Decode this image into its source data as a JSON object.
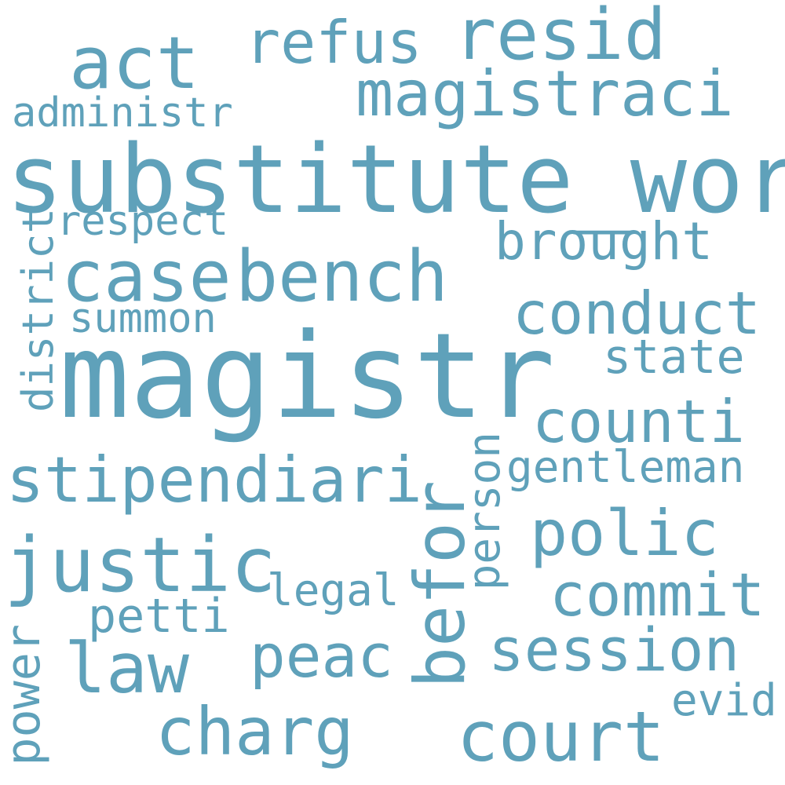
{
  "color": "#5fa1ba",
  "words": {
    "magistr": "magistr",
    "substitute_word": "substitute_word",
    "case": "case",
    "bench": "bench",
    "act": "act",
    "refus": "refus",
    "resid": "resid",
    "magistraci": "magistraci",
    "administr": "administr",
    "respect": "respect",
    "district": "district",
    "brought": "brought",
    "conduct": "conduct",
    "summon": "summon",
    "state": "state",
    "counti": "counti",
    "stipendiari": "stipendiari",
    "gentleman": "gentleman",
    "person": "person",
    "polic": "polic",
    "befor": "befor",
    "justic": "justic",
    "legal": "legal",
    "commit": "commit",
    "petti": "petti",
    "law": "law",
    "peac": "peac",
    "session": "session",
    "power": "power",
    "evid": "evid",
    "charg": "charg",
    "court": "court"
  }
}
